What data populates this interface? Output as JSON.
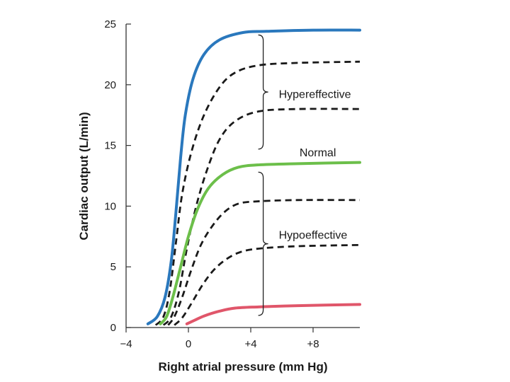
{
  "chart_data": {
    "type": "line",
    "title": "",
    "xlabel": "Right atrial pressure (mm Hg)",
    "ylabel": "Cardiac output (L/min)",
    "xlim": [
      -4,
      11
    ],
    "ylim": [
      0,
      25
    ],
    "x_ticks": [
      -4,
      0,
      4,
      8
    ],
    "x_tick_labels": [
      "−4",
      "0",
      "+4",
      "+8"
    ],
    "y_ticks": [
      0,
      5,
      10,
      15,
      20,
      25
    ],
    "y_tick_labels": [
      "0",
      "5",
      "10",
      "15",
      "20",
      "25"
    ],
    "grid": false,
    "series": [
      {
        "name": "Hypereffective (max)",
        "style": "solid",
        "color": "#2a78bd",
        "points": [
          [
            -2.6,
            0.3
          ],
          [
            -2.0,
            0.9
          ],
          [
            -1.5,
            2.5
          ],
          [
            -1.1,
            5.5
          ],
          [
            -0.8,
            9.5
          ],
          [
            -0.5,
            14.0
          ],
          [
            -0.2,
            17.5
          ],
          [
            0.3,
            20.5
          ],
          [
            1.0,
            22.5
          ],
          [
            2.0,
            23.7
          ],
          [
            3.5,
            24.3
          ],
          [
            5.0,
            24.4
          ],
          [
            8.0,
            24.5
          ],
          [
            11.0,
            24.5
          ]
        ]
      },
      {
        "name": "Hypereffective (upper dashed)",
        "style": "dashed",
        "color": "#1a1a1a",
        "points": [
          [
            -2.1,
            0.2
          ],
          [
            -1.6,
            0.9
          ],
          [
            -1.2,
            3.0
          ],
          [
            -0.8,
            7.0
          ],
          [
            -0.4,
            11.0
          ],
          [
            0.2,
            14.5
          ],
          [
            1.0,
            17.5
          ],
          [
            2.0,
            19.8
          ],
          [
            3.0,
            21.0
          ],
          [
            4.5,
            21.6
          ],
          [
            7.0,
            21.8
          ],
          [
            11.0,
            21.9
          ]
        ]
      },
      {
        "name": "Hypereffective (lower dashed)",
        "style": "dashed",
        "color": "#1a1a1a",
        "points": [
          [
            -1.6,
            0.2
          ],
          [
            -1.1,
            0.9
          ],
          [
            -0.6,
            3.0
          ],
          [
            -0.1,
            6.5
          ],
          [
            0.5,
            10.0
          ],
          [
            1.2,
            13.0
          ],
          [
            2.0,
            15.5
          ],
          [
            3.0,
            17.0
          ],
          [
            4.5,
            17.8
          ],
          [
            7.0,
            18.0
          ],
          [
            11.0,
            18.0
          ]
        ]
      },
      {
        "name": "Normal",
        "style": "solid",
        "color": "#6cbf4a",
        "points": [
          [
            -1.8,
            0.3
          ],
          [
            -1.4,
            0.9
          ],
          [
            -1.0,
            2.5
          ],
          [
            -0.5,
            5.0
          ],
          [
            0.0,
            7.5
          ],
          [
            0.6,
            9.8
          ],
          [
            1.3,
            11.5
          ],
          [
            2.2,
            12.6
          ],
          [
            3.2,
            13.2
          ],
          [
            4.5,
            13.4
          ],
          [
            7.0,
            13.5
          ],
          [
            11.0,
            13.6
          ]
        ]
      },
      {
        "name": "Hypoeffective (upper dashed)",
        "style": "dashed",
        "color": "#1a1a1a",
        "points": [
          [
            -1.3,
            0.2
          ],
          [
            -0.9,
            0.9
          ],
          [
            -0.4,
            2.5
          ],
          [
            0.2,
            4.8
          ],
          [
            0.8,
            6.8
          ],
          [
            1.5,
            8.3
          ],
          [
            2.3,
            9.5
          ],
          [
            3.2,
            10.2
          ],
          [
            4.5,
            10.4
          ],
          [
            7.0,
            10.5
          ],
          [
            11.0,
            10.5
          ]
        ]
      },
      {
        "name": "Hypoeffective (lower dashed)",
        "style": "dashed",
        "color": "#1a1a1a",
        "points": [
          [
            -0.9,
            0.2
          ],
          [
            -0.4,
            0.8
          ],
          [
            0.2,
            2.0
          ],
          [
            0.9,
            3.5
          ],
          [
            1.6,
            4.7
          ],
          [
            2.4,
            5.6
          ],
          [
            3.3,
            6.2
          ],
          [
            4.5,
            6.5
          ],
          [
            7.0,
            6.7
          ],
          [
            11.0,
            6.8
          ]
        ]
      },
      {
        "name": "Hypoeffective (min)",
        "style": "solid",
        "color": "#e0566a",
        "points": [
          [
            -0.1,
            0.3
          ],
          [
            0.4,
            0.6
          ],
          [
            1.0,
            0.95
          ],
          [
            2.0,
            1.35
          ],
          [
            3.0,
            1.6
          ],
          [
            4.5,
            1.7
          ],
          [
            7.0,
            1.8
          ],
          [
            11.0,
            1.9
          ]
        ]
      }
    ],
    "annotations": [
      {
        "id": "hyper",
        "text": "Hypereffective",
        "label_at": [
          5.8,
          19.2
        ],
        "brace_x": 4.8,
        "brace_span": [
          14.7,
          24.1
        ]
      },
      {
        "id": "normal",
        "text": "Normal",
        "label_at": [
          8.3,
          14.4
        ]
      },
      {
        "id": "hypo",
        "text": "Hypoeffective",
        "label_at": [
          5.8,
          7.6
        ],
        "brace_x": 4.8,
        "brace_span": [
          1.0,
          12.8
        ]
      }
    ]
  }
}
